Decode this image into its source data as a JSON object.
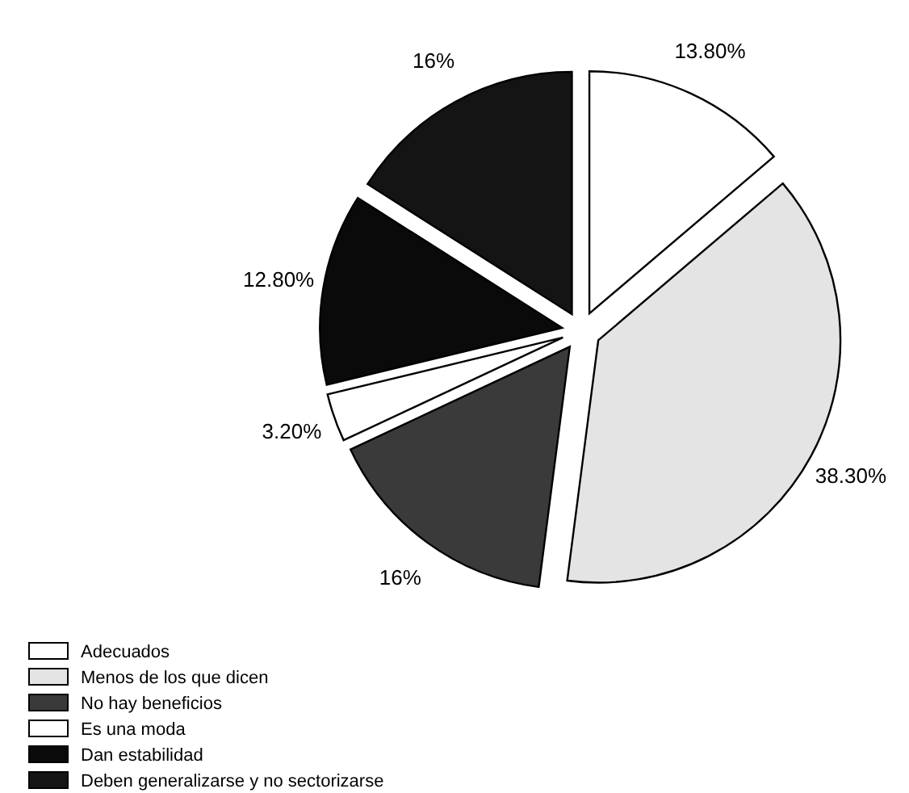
{
  "chart_data": {
    "type": "pie",
    "categories": [
      "Adecuados",
      "Menos de los que dicen",
      "No hay beneficios",
      "Es una moda",
      "Dan estabilidad",
      "Deben generalizarse y no sectorizarse"
    ],
    "values": [
      13.8,
      38.3,
      16,
      3.2,
      12.8,
      16
    ],
    "value_labels": [
      "13.80%",
      "38.30%",
      "16%",
      "3.20%",
      "12.80%",
      "16%"
    ],
    "colors": [
      "#ffffff",
      "#e4e4e4",
      "#3a3a3a",
      "#ffffff",
      "#0a0a0a",
      "#141414"
    ],
    "legend": "bottom left"
  }
}
